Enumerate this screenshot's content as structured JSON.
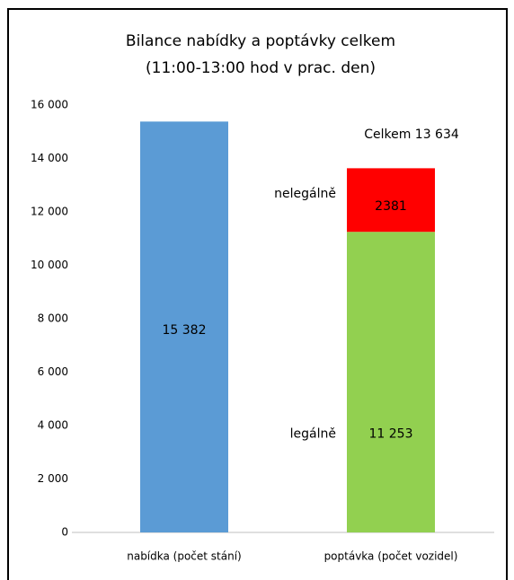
{
  "chart_data": {
    "type": "bar",
    "stacked": true,
    "title": "Bilance nabídky a poptávky  celkem",
    "subtitle": "(11:00-13:00 hod v prac. den)",
    "categories": [
      "nabídka (počet stání)",
      "poptávka (počet vozidel)"
    ],
    "series": [
      {
        "color": "#5b9bd5",
        "values": [
          15382,
          null
        ],
        "value_labels": [
          "15 382",
          null
        ]
      },
      {
        "name": "legálně",
        "color": "#92d050",
        "values": [
          null,
          11253
        ],
        "value_labels": [
          null,
          "11 253"
        ]
      },
      {
        "name": "nelegálně",
        "color": "#ff0000",
        "values": [
          null,
          2381
        ]
      }
    ],
    "annotations": [
      "Celkem 13 634"
    ],
    "ylim": [
      0,
      16000
    ],
    "yticks": [
      0,
      {
        "value": 2000,
        "label": "2 000"
      },
      {
        "value": 4000,
        "label": "4 000"
      },
      {
        "value": 6000,
        "label": "6 000"
      },
      {
        "value": 8000,
        "label": "8 000"
      },
      {
        "value": 10000,
        "label": "10 000"
      },
      {
        "value": 12000,
        "label": "12 000"
      },
      {
        "value": 14000,
        "label": "14 000"
      },
      {
        "value": 16000,
        "label": "16 000"
      }
    ],
    "grid": false
  }
}
